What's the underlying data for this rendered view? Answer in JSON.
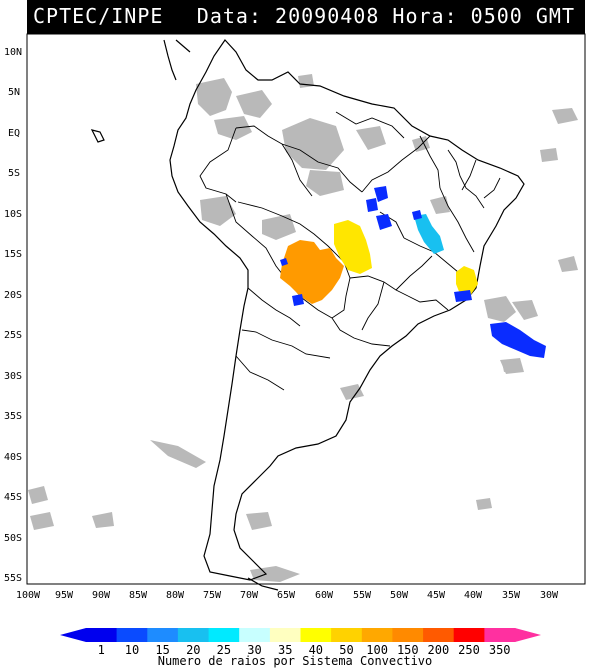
{
  "header": {
    "left": "CPTEC/INPE",
    "right": "Data: 20090408 Hora: 0500 GMT"
  },
  "axes": {
    "lat_labels": [
      "10N",
      "5N",
      "EQ",
      "5S",
      "10S",
      "15S",
      "20S",
      "25S",
      "30S",
      "35S",
      "40S",
      "45S",
      "50S",
      "55S"
    ],
    "lon_labels": [
      "100W",
      "95W",
      "90W",
      "85W",
      "80W",
      "75W",
      "70W",
      "65W",
      "60W",
      "55W",
      "50W",
      "45W",
      "40W",
      "35W",
      "30W"
    ]
  },
  "colorbar": {
    "labels": [
      "1",
      "10",
      "15",
      "20",
      "25",
      "30",
      "35",
      "40",
      "50",
      "100",
      "150",
      "200",
      "250",
      "350"
    ],
    "colors": [
      "#0000ee",
      "#0a4bff",
      "#1e8cff",
      "#18c0f0",
      "#00eaff",
      "#c8ffff",
      "#ffffc0",
      "#ffff00",
      "#ffd200",
      "#ffa800",
      "#ff8a00",
      "#ff5a00",
      "#ff0000",
      "#ff30a0"
    ],
    "title": "Numero de raios por Sistema Convectivo"
  },
  "colors": {
    "cloud": "#b9b9b9",
    "orange": "#ff9a00",
    "yellow": "#ffe600",
    "blue": "#0a2cff",
    "cyan": "#18c0f0"
  }
}
